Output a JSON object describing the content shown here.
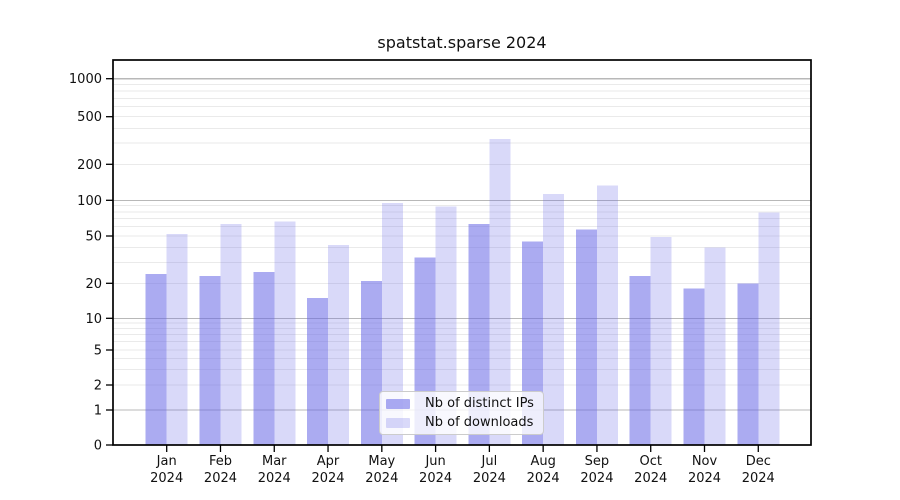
{
  "title": "spatstat.sparse 2024",
  "chart_data": {
    "type": "bar",
    "title": "spatstat.sparse 2024",
    "categories": [
      "Jan",
      "Feb",
      "Mar",
      "Apr",
      "May",
      "Jun",
      "Jul",
      "Aug",
      "Sep",
      "Oct",
      "Nov",
      "Dec"
    ],
    "x_sublabel": "2024",
    "series": [
      {
        "name": "Nb of distinct IPs",
        "values": [
          24,
          23,
          25,
          15,
          21,
          33,
          63,
          45,
          57,
          23,
          18,
          20
        ],
        "color": "rgba(102,102,230,0.55)"
      },
      {
        "name": "Nb of downloads",
        "values": [
          52,
          63,
          66,
          42,
          95,
          89,
          326,
          113,
          133,
          49,
          40,
          79
        ],
        "color": "rgba(102,102,230,0.25)"
      }
    ],
    "y_ticks": [
      0,
      1,
      2,
      5,
      10,
      20,
      50,
      100,
      200,
      500,
      1000
    ],
    "y_scale": "log above 1, linear 0-1",
    "ylim": [
      0,
      1500
    ],
    "grid": true,
    "legend_position": "lower-center",
    "xlabel": "",
    "ylabel": ""
  },
  "colors": {
    "grid_major": "#b8b8b8",
    "grid_minor": "#eaeaea",
    "frame": "#000000",
    "text": "#111111",
    "legend_border": "#cccccc",
    "legend_bg": "rgba(255,255,255,0.8)"
  }
}
